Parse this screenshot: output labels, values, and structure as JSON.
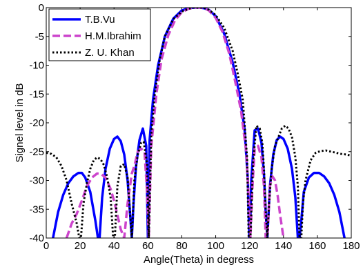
{
  "chart_data": {
    "type": "line",
    "title": "",
    "xlabel": "Angle(Theta) in degress",
    "ylabel": "Signel level in dB",
    "xlim": [
      0,
      180
    ],
    "ylim": [
      -40,
      0
    ],
    "xticks": [
      "0",
      "20",
      "40",
      "60",
      "80",
      "100",
      "120",
      "140",
      "160",
      "180"
    ],
    "yticks": [
      "0",
      "-5",
      "-10",
      "-15",
      "-20",
      "-25",
      "-30",
      "-35",
      "-40"
    ],
    "grid": false,
    "legend_position": "top-left",
    "series": [
      {
        "name": "T.B.Vu",
        "color": "#0000ff",
        "dash": "solid",
        "x": [
          4,
          7,
          10,
          13,
          16,
          19,
          21,
          23,
          26,
          29,
          30.5,
          31.5,
          33,
          35,
          37.5,
          40,
          42,
          44,
          46,
          48,
          49.5,
          50.5,
          51.5,
          53,
          55,
          57,
          59,
          60,
          60.2,
          61,
          63,
          66,
          70,
          75,
          80,
          84,
          87,
          89,
          90,
          91,
          93,
          96,
          100,
          105,
          110,
          114,
          117,
          119,
          119.8,
          120.2,
          121,
          123,
          125,
          127,
          128.5,
          129.5,
          130.5,
          132,
          134,
          136,
          138,
          140,
          142.5,
          145,
          147,
          148.5,
          149.5,
          150.5,
          152,
          155,
          158,
          161,
          164,
          167,
          170,
          173,
          176
        ],
        "y": [
          -40,
          -35.5,
          -32.5,
          -30.5,
          -29.3,
          -28.7,
          -28.7,
          -29.5,
          -32,
          -37,
          -40,
          -40,
          -33,
          -28,
          -24.5,
          -22.8,
          -22.4,
          -23.2,
          -25.5,
          -30,
          -36,
          -40,
          -34,
          -27.5,
          -23,
          -21,
          -24,
          -40,
          -40,
          -23,
          -16,
          -10,
          -5,
          -1.9,
          -0.5,
          -0.1,
          0,
          0,
          0,
          0,
          -0.1,
          -0.4,
          -1.5,
          -4.5,
          -9.5,
          -15,
          -21,
          -30,
          -40,
          -40,
          -30,
          -21.3,
          -21,
          -23.5,
          -29,
          -35.5,
          -40,
          -31,
          -25.5,
          -23,
          -22.4,
          -22.8,
          -24.5,
          -28,
          -33,
          -40,
          -40,
          -37,
          -32,
          -29.5,
          -28.7,
          -28.7,
          -29.3,
          -30.5,
          -32.5,
          -35.5,
          -40
        ]
      },
      {
        "name": "H.M.Ibrahim",
        "color": "#cc44cc",
        "dash": "dashed",
        "x": [
          12,
          15,
          18,
          21,
          24,
          27,
          30,
          32.5,
          35,
          38,
          40,
          42,
          44,
          46,
          48,
          50.5,
          52,
          54,
          56,
          58,
          59.5,
          60.5,
          62,
          65,
          68,
          72,
          76,
          80,
          84,
          87,
          89,
          90,
          91,
          93,
          96,
          100,
          104,
          108,
          112,
          115,
          118,
          119.5,
          120.5,
          121.5,
          123,
          125,
          127,
          128.5,
          129.5,
          130.5,
          132,
          133.5,
          135,
          136.5,
          138,
          140
        ],
        "y": [
          -40,
          -37.5,
          -35.8,
          -33.5,
          -31,
          -29.5,
          -28.8,
          -28.9,
          -29.5,
          -31.5,
          -33.5,
          -36,
          -38.5,
          -40,
          -34,
          -28.8,
          -27.5,
          -25,
          -24.5,
          -25,
          -32,
          -40,
          -24,
          -15,
          -9,
          -4.8,
          -2.2,
          -0.8,
          -0.2,
          0,
          0,
          0,
          0,
          -0.1,
          -0.5,
          -1.8,
          -4.2,
          -8,
          -13.5,
          -18,
          -25,
          -33,
          -40,
          -32,
          -24.5,
          -24,
          -26,
          -31,
          -40,
          -40,
          -31,
          -29.3,
          -30,
          -32.5,
          -36,
          -40
        ]
      },
      {
        "name": "Z. U. Khan",
        "color": "#000000",
        "dash": "dotted",
        "x": [
          0,
          3,
          6,
          9,
          12,
          15,
          18,
          19.5,
          20.5,
          22,
          24,
          26,
          28,
          30,
          32,
          34,
          36,
          38,
          39.5,
          40.5,
          42,
          44,
          46,
          48,
          49.5,
          50.5,
          52,
          54,
          56,
          57.5,
          59.5,
          60.5,
          62,
          64,
          67,
          70,
          75,
          80,
          84,
          87,
          89,
          90,
          91,
          93,
          96,
          100,
          105,
          110,
          113,
          116,
          118.5,
          119.5,
          120.5,
          122,
          124,
          126,
          127.5,
          128.5,
          129.5,
          130.5,
          131.5,
          133,
          135,
          137,
          139,
          141,
          143,
          145,
          147,
          148.5,
          149.5,
          150.5,
          151.5,
          153,
          156,
          159,
          162,
          165,
          168,
          171,
          174,
          177,
          180
        ],
        "y": [
          -25.2,
          -25.4,
          -26,
          -27.5,
          -30,
          -34,
          -37.5,
          -40,
          -40,
          -34,
          -30.5,
          -28,
          -26.5,
          -26,
          -26.3,
          -27.3,
          -29.5,
          -33,
          -40,
          -40,
          -31,
          -27.5,
          -27.2,
          -29.5,
          -36,
          -40,
          -30,
          -25.5,
          -23.5,
          -23.3,
          -27,
          -40,
          -22,
          -15,
          -9,
          -5,
          -2,
          -0.7,
          -0.2,
          0,
          0,
          0,
          0,
          0,
          -0.4,
          -1.3,
          -3.5,
          -7.5,
          -11.5,
          -16,
          -26,
          -40,
          -40,
          -27,
          -20.5,
          -21,
          -23.5,
          -28,
          -35,
          -40,
          -34,
          -28,
          -24,
          -22.5,
          -21,
          -20.5,
          -21,
          -22.5,
          -26,
          -31,
          -40,
          -40,
          -34,
          -30,
          -26.5,
          -25.2,
          -24.9,
          -24.8,
          -25,
          -25.2,
          -25.4,
          -25.5,
          -25.7
        ]
      }
    ]
  }
}
